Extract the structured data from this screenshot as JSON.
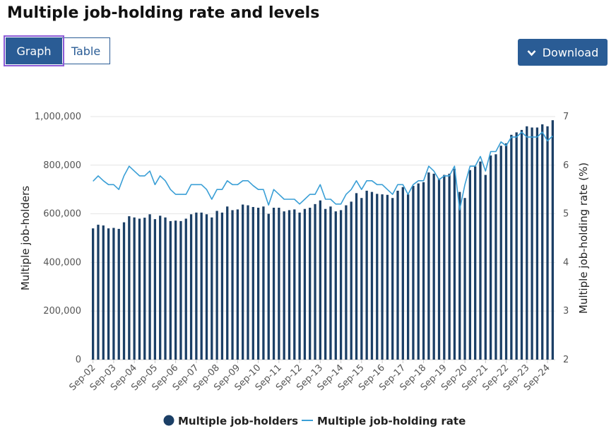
{
  "page": {
    "title": "Multiple job-holding rate and levels"
  },
  "tabs": {
    "graph": "Graph",
    "table": "Table"
  },
  "toolbar": {
    "download_label": "Download",
    "download_icon": "chevron-down-icon"
  },
  "colors": {
    "bar": "#1b3f66",
    "line": "#3a9fd6",
    "accent": "#2a5c95",
    "focus": "#8c5bd6"
  },
  "chart_data": {
    "type": "bar+line",
    "title": "Multiple job-holding rate and levels",
    "ylabel_left": "Multiple job-holders",
    "ylabel_right": "Multiple job-holding rate (%)",
    "yleft_lim": [
      0,
      1000000
    ],
    "yright_lim": [
      2,
      7
    ],
    "yleft_ticks": [
      "0",
      "200,000",
      "400,000",
      "600,000",
      "800,000",
      "1,000,000"
    ],
    "yright_ticks": [
      "2",
      "3",
      "4",
      "5",
      "6",
      "7"
    ],
    "x_ticks": [
      "Sep-02",
      "Sep-03",
      "Sep-04",
      "Sep-05",
      "Sep-06",
      "Sep-07",
      "Sep-08",
      "Sep-09",
      "Sep-10",
      "Sep-11",
      "Sep-12",
      "Sep-13",
      "Sep-14",
      "Sep-15",
      "Sep-16",
      "Sep-17",
      "Sep-18",
      "Sep-19",
      "Sep-20",
      "Sep-21",
      "Sep-22",
      "Sep-23",
      "Sep-24"
    ],
    "periods_per_year": 4,
    "legend": [
      "Multiple job-holders",
      "Multiple job-holding rate"
    ],
    "series": [
      {
        "name": "Multiple job-holders",
        "type": "bar",
        "values": [
          540000,
          555000,
          552000,
          540000,
          542000,
          538000,
          565000,
          590000,
          585000,
          580000,
          584000,
          598000,
          578000,
          592000,
          585000,
          570000,
          572000,
          570000,
          580000,
          598000,
          605000,
          605000,
          598000,
          585000,
          612000,
          605000,
          630000,
          615000,
          618000,
          638000,
          635000,
          628000,
          625000,
          630000,
          600000,
          625000,
          625000,
          610000,
          615000,
          618000,
          605000,
          620000,
          625000,
          640000,
          655000,
          620000,
          630000,
          610000,
          615000,
          635000,
          650000,
          685000,
          665000,
          695000,
          690000,
          682000,
          680000,
          678000,
          665000,
          695000,
          710000,
          680000,
          715000,
          725000,
          730000,
          770000,
          765000,
          745000,
          760000,
          765000,
          785000,
          690000,
          665000,
          780000,
          795000,
          815000,
          760000,
          840000,
          845000,
          880000,
          890000,
          925000,
          935000,
          945000,
          960000,
          955000,
          955000,
          968000,
          960000,
          985000
        ]
      },
      {
        "name": "Multiple job-holding rate",
        "type": "line",
        "values": [
          5.67,
          5.78,
          5.68,
          5.6,
          5.6,
          5.5,
          5.78,
          5.98,
          5.88,
          5.78,
          5.78,
          5.88,
          5.6,
          5.78,
          5.68,
          5.5,
          5.4,
          5.4,
          5.4,
          5.6,
          5.6,
          5.6,
          5.5,
          5.3,
          5.5,
          5.5,
          5.68,
          5.6,
          5.6,
          5.68,
          5.68,
          5.58,
          5.5,
          5.5,
          5.18,
          5.5,
          5.4,
          5.3,
          5.3,
          5.3,
          5.2,
          5.3,
          5.4,
          5.4,
          5.6,
          5.3,
          5.3,
          5.2,
          5.2,
          5.4,
          5.5,
          5.68,
          5.5,
          5.68,
          5.68,
          5.6,
          5.6,
          5.5,
          5.4,
          5.6,
          5.6,
          5.4,
          5.6,
          5.68,
          5.68,
          5.98,
          5.88,
          5.7,
          5.78,
          5.78,
          5.98,
          5.08,
          5.6,
          5.98,
          5.98,
          6.18,
          5.88,
          6.28,
          6.28,
          6.48,
          6.4,
          6.58,
          6.58,
          6.68,
          6.58,
          6.58,
          6.58,
          6.68,
          6.5,
          6.6
        ]
      }
    ]
  }
}
